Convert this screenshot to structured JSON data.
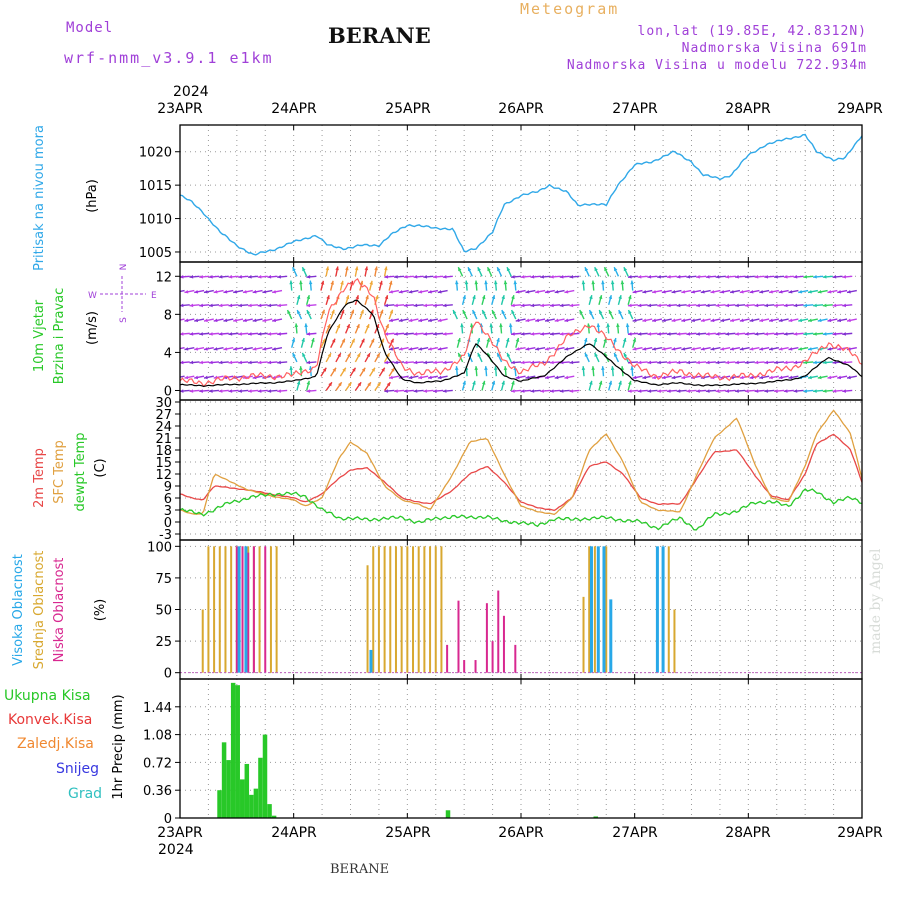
{
  "header": {
    "model_label": "Model",
    "model_name": "wrf-nmm_v3.9.1  e1km",
    "station": "BERANE",
    "meteogram": "Meteogram",
    "lonlat": "lon,lat (19.85E, 42.8312N)",
    "altitude": "Nadmorska Visina 691m",
    "model_altitude": "Nadmorska Visina u modelu 722.934m"
  },
  "footer": {
    "station": "BERANE",
    "credit": "made by Angel"
  },
  "time_axis": {
    "year": "2024",
    "dates": [
      "23APR",
      "24APR",
      "25APR",
      "26APR",
      "27APR",
      "28APR",
      "29APR"
    ]
  },
  "colors": {
    "pressure": "#30a8e8",
    "wind_speed": "#000000",
    "gust": "#ff6060",
    "temp2m": "#e84848",
    "sfc_temp": "#e0a040",
    "dewpoint": "#28c828",
    "cloud_high": "#28a8e8",
    "cloud_mid": "#d8a830",
    "cloud_low": "#d82890",
    "precip_total": "#28c828"
  },
  "panels": {
    "pressure": {
      "label": "Pritisak na nivou mora",
      "unit": "(hPa)"
    },
    "wind": {
      "label1": "10m Vjetar",
      "label2": "Brzina i Pravac",
      "unit": "(m/s)",
      "compass": {
        "n": "N",
        "s": "S",
        "e": "E",
        "w": "W"
      }
    },
    "temp": {
      "label1": "2m Temp",
      "label2": "SFC Temp",
      "label3": "dewpt Temp",
      "unit": "(C)"
    },
    "cloud": {
      "label1": "Visoka Oblacnost",
      "label2": "Srednja Oblacnost",
      "label3": "Niska Oblacnost",
      "unit": "(%)"
    },
    "precip": {
      "legend": [
        "Ukupna Kisa",
        "Konvek.Kisa",
        "Zaledj.Kisa",
        "Snijeg",
        "Grad"
      ],
      "legend_colors": [
        "#28c828",
        "#e83838",
        "#f08830",
        "#3838e0",
        "#30c0c0"
      ],
      "unit": "1hr Precip (mm)"
    }
  },
  "chart_data": [
    {
      "type": "line",
      "name_key": "pressure",
      "x_days": [
        0,
        0.1,
        0.2,
        0.35,
        0.5,
        0.65,
        0.7,
        0.85,
        1.0,
        1.2,
        1.3,
        1.45,
        1.6,
        1.75,
        1.85,
        2.0,
        2.1,
        2.25,
        2.4,
        2.5,
        2.6,
        2.75,
        2.85,
        3.0,
        3.15,
        3.25,
        3.4,
        3.5,
        3.6,
        3.75,
        3.85,
        4.0,
        4.15,
        4.35,
        4.5,
        4.6,
        4.75,
        4.85,
        5.0,
        5.15,
        5.35,
        5.5,
        5.6,
        5.75,
        5.85,
        6.0
      ],
      "values": [
        1013.5,
        1012.5,
        1011,
        1008,
        1006,
        1004.5,
        1004.8,
        1005.5,
        1006.5,
        1007.5,
        1006,
        1005.5,
        1006,
        1006,
        1007.5,
        1009,
        1009,
        1008.5,
        1008.5,
        1005,
        1005.5,
        1008,
        1012,
        1013.5,
        1014,
        1015,
        1014,
        1012,
        1012.2,
        1012,
        1015,
        1018,
        1018.5,
        1020,
        1018.5,
        1016.5,
        1016,
        1016.5,
        1019.5,
        1021,
        1022,
        1022.5,
        1020,
        1018.8,
        1019,
        1022.5
      ],
      "yticks": [
        1005,
        1010,
        1015,
        1020
      ],
      "ylim": [
        1003.5,
        1024
      ]
    },
    {
      "type": "line",
      "name_key": "wind",
      "x_days": [
        0,
        0.2,
        0.4,
        0.6,
        0.8,
        1.0,
        1.2,
        1.3,
        1.45,
        1.55,
        1.7,
        1.8,
        1.95,
        2.1,
        2.3,
        2.5,
        2.6,
        2.7,
        2.85,
        3.0,
        3.2,
        3.4,
        3.6,
        3.8,
        4.0,
        4.2,
        4.4,
        4.6,
        4.8,
        5.0,
        5.2,
        5.4,
        5.5,
        5.7,
        5.9,
        6.0
      ],
      "values": [
        0.6,
        0.5,
        0.6,
        0.7,
        0.8,
        1.0,
        1.5,
        6.0,
        9.0,
        9.5,
        8.0,
        4.0,
        1.2,
        0.8,
        1.0,
        1.8,
        5.0,
        3.8,
        1.5,
        1.0,
        1.5,
        3.5,
        5.0,
        3.0,
        1.0,
        0.6,
        0.8,
        0.5,
        0.6,
        0.7,
        0.9,
        1.2,
        1.5,
        3.5,
        2.5,
        1.5
      ],
      "gust_values": [
        1.0,
        0.8,
        1.2,
        1.5,
        1.5,
        1.6,
        2.5,
        8.0,
        11.0,
        11.5,
        10.0,
        6.0,
        2.5,
        1.8,
        2.0,
        3.5,
        7.5,
        6.0,
        3.0,
        2.0,
        2.8,
        5.5,
        7.0,
        5.0,
        2.5,
        1.5,
        2.0,
        1.5,
        1.4,
        1.5,
        2.0,
        2.5,
        3.0,
        5.0,
        4.0,
        3.0
      ],
      "yticks": [
        0,
        4,
        8,
        12
      ],
      "ylim": [
        -1,
        13.5
      ]
    },
    {
      "type": "line",
      "name_key": "temp",
      "x_days": [
        0,
        0.1,
        0.2,
        0.3,
        0.45,
        0.6,
        0.8,
        1.0,
        1.1,
        1.25,
        1.4,
        1.5,
        1.65,
        1.8,
        1.95,
        2.1,
        2.2,
        2.4,
        2.55,
        2.7,
        2.85,
        3.0,
        3.15,
        3.3,
        3.45,
        3.6,
        3.75,
        3.9,
        4.05,
        4.2,
        4.4,
        4.55,
        4.7,
        4.9,
        5.05,
        5.2,
        5.35,
        5.5,
        5.6,
        5.75,
        5.9,
        6.0
      ],
      "series": [
        {
          "name_key": "temp2m",
          "values": [
            7,
            6,
            5.5,
            9,
            8.5,
            8,
            7,
            6,
            5,
            7,
            11,
            13,
            13.5,
            10,
            6,
            5,
            4.5,
            8,
            12,
            14,
            10,
            5,
            3.5,
            3,
            6,
            14,
            15,
            12,
            6,
            4.5,
            4.5,
            11,
            17.5,
            18,
            12,
            6.5,
            5.5,
            12,
            19.5,
            22,
            18,
            10
          ]
        },
        {
          "name_key": "sfc_temp",
          "values": [
            3,
            2,
            2,
            12,
            10,
            8,
            6.5,
            5.5,
            4,
            6,
            16,
            20,
            17,
            9,
            5.5,
            4.5,
            3,
            12,
            20,
            21,
            12,
            4,
            2.5,
            2,
            6,
            18,
            22,
            15,
            5,
            3,
            2.5,
            12,
            21,
            26,
            15,
            6,
            5,
            14,
            22,
            28,
            22,
            11
          ]
        },
        {
          "name_key": "dewpoint",
          "values": [
            3,
            2.5,
            2,
            3,
            5,
            6,
            7,
            7,
            6.5,
            3,
            1,
            1,
            0.5,
            1,
            1,
            0,
            0.5,
            1.5,
            1,
            1.5,
            0,
            0,
            -1,
            1,
            0.5,
            1,
            1,
            0.5,
            0,
            -1.5,
            1,
            -2,
            2,
            2.5,
            5,
            5,
            4,
            8,
            7.5,
            5,
            6,
            5
          ]
        }
      ],
      "yticks": [
        -3,
        0,
        3,
        6,
        9,
        12,
        15,
        18,
        21,
        24,
        27,
        30
      ],
      "ylim": [
        -4.5,
        30.5
      ]
    },
    {
      "type": "bar",
      "name_key": "cloud",
      "series": [
        {
          "name_key": "cloud_mid",
          "x_days": [
            0.2,
            0.25,
            0.3,
            0.35,
            0.4,
            0.45,
            0.5,
            0.55,
            0.6,
            0.65,
            0.7,
            0.8,
            0.85,
            1.65,
            1.7,
            1.75,
            1.8,
            1.85,
            1.9,
            1.95,
            2.0,
            2.05,
            2.1,
            2.15,
            2.2,
            2.25,
            2.3,
            3.55,
            3.6,
            3.65,
            3.75,
            4.3,
            4.35
          ],
          "values": [
            50,
            100,
            100,
            100,
            100,
            100,
            100,
            100,
            100,
            100,
            100,
            100,
            100,
            85,
            100,
            100,
            100,
            100,
            100,
            100,
            100,
            100,
            100,
            100,
            100,
            100,
            100,
            60,
            100,
            100,
            100,
            100,
            50
          ]
        },
        {
          "name_key": "cloud_low",
          "x_days": [
            0.5,
            0.55,
            0.6,
            0.65,
            0.75,
            2.35,
            2.45,
            2.5,
            2.6,
            2.7,
            2.75,
            2.8,
            2.85,
            2.95
          ],
          "values": [
            100,
            100,
            95,
            100,
            100,
            22,
            57,
            10,
            10,
            55,
            25,
            65,
            45,
            22
          ]
        },
        {
          "name_key": "cloud_high",
          "x_days": [
            0.52,
            0.58,
            1.68,
            3.62,
            3.68,
            3.73,
            3.79,
            4.2,
            4.25
          ],
          "values": [
            100,
            100,
            18,
            100,
            100,
            100,
            58,
            100,
            100
          ]
        }
      ],
      "yticks": [
        0,
        25,
        50,
        75,
        100
      ],
      "ylim": [
        -5,
        105
      ]
    },
    {
      "type": "bar",
      "name_key": "precip",
      "series": [
        {
          "name_key": "precip_total",
          "x_days": [
            0.35,
            0.39,
            0.43,
            0.47,
            0.51,
            0.55,
            0.59,
            0.63,
            0.67,
            0.71,
            0.75,
            0.79,
            0.83,
            2.36,
            3.66
          ],
          "values": [
            0.36,
            0.98,
            0.75,
            1.75,
            1.72,
            0.5,
            0.7,
            0.3,
            0.38,
            0.78,
            1.08,
            0.18,
            0.03,
            0.1,
            0.02
          ]
        }
      ],
      "yticks": [
        0,
        0.36,
        0.72,
        1.08,
        1.44
      ],
      "yticklabels": [
        "0",
        "0.36",
        "0.72",
        "1.08",
        "1.44"
      ],
      "ylim": [
        0,
        1.8
      ]
    }
  ]
}
